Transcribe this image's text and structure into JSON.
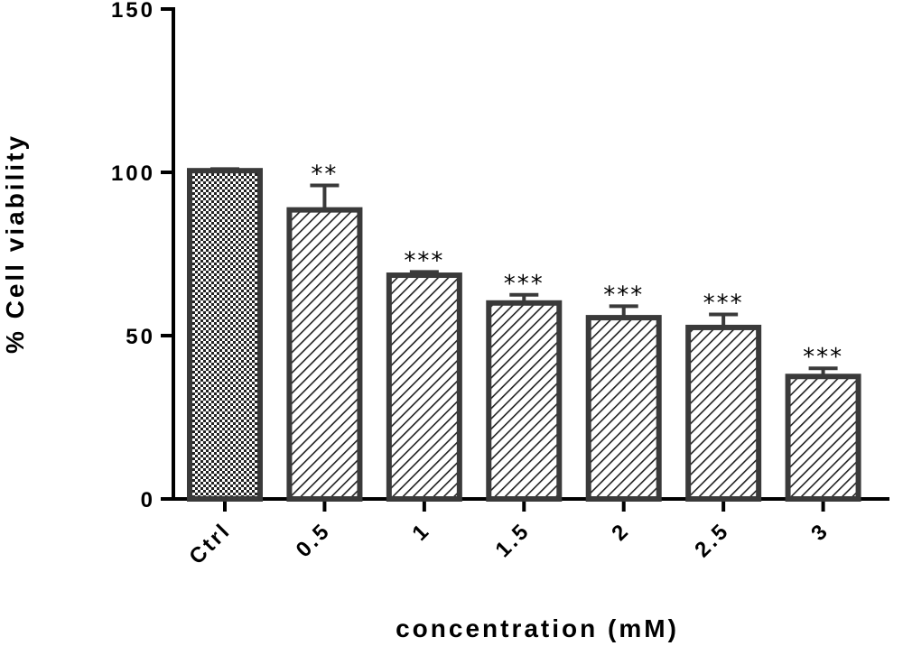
{
  "chart_data": {
    "type": "bar",
    "title": "",
    "xlabel": "concentration (mM)",
    "ylabel": "% Cell viability",
    "ylim": [
      0,
      150
    ],
    "yticks": [
      0,
      50,
      100,
      150
    ],
    "categories": [
      "Ctrl",
      "0.5",
      "1",
      "1.5",
      "2",
      "2.5",
      "3"
    ],
    "values": [
      100.5,
      88.5,
      68.5,
      60,
      55.5,
      52.5,
      37.5
    ],
    "errors": [
      0.5,
      7.5,
      1.0,
      2.5,
      3.5,
      4.0,
      2.5
    ],
    "significance": [
      "",
      "**",
      "***",
      "***",
      "***",
      "***",
      "***"
    ],
    "patterns": [
      "checker",
      "hatch",
      "hatch",
      "hatch",
      "hatch",
      "hatch",
      "hatch"
    ],
    "colors": {
      "bar_stroke": "#3a3a3a",
      "axis": "#000000",
      "fill_dark": "#222222"
    },
    "grid": false,
    "legend": "none"
  }
}
